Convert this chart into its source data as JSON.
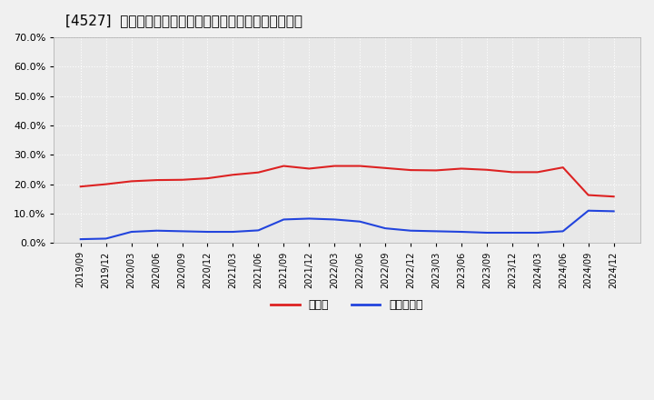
{
  "title": "[4527]  現預金、有利子負債の総資産に対する比率の推移",
  "x_labels": [
    "2019/09",
    "2019/12",
    "2020/03",
    "2020/06",
    "2020/09",
    "2020/12",
    "2021/03",
    "2021/06",
    "2021/09",
    "2021/12",
    "2022/03",
    "2022/06",
    "2022/09",
    "2022/12",
    "2023/03",
    "2023/06",
    "2023/09",
    "2023/12",
    "2024/03",
    "2024/06",
    "2024/09",
    "2024/12"
  ],
  "cash": [
    0.192,
    0.2,
    0.21,
    0.214,
    0.215,
    0.22,
    0.232,
    0.24,
    0.262,
    0.253,
    0.262,
    0.262,
    0.255,
    0.248,
    0.247,
    0.253,
    0.249,
    0.241,
    0.241,
    0.257,
    0.163,
    0.158
  ],
  "debt": [
    0.013,
    0.015,
    0.038,
    0.042,
    0.04,
    0.038,
    0.038,
    0.043,
    0.08,
    0.083,
    0.08,
    0.073,
    0.05,
    0.042,
    0.04,
    0.038,
    0.035,
    0.035,
    0.035,
    0.04,
    0.11,
    0.108
  ],
  "cash_color": "#dd2222",
  "debt_color": "#2244dd",
  "bg_color": "#f0f0f0",
  "plot_bg_color": "#e8e8e8",
  "grid_color": "#ffffff",
  "legend_cash": "現預金",
  "legend_debt": "有利子負債",
  "ylim": [
    0.0,
    0.7
  ],
  "yticks": [
    0.0,
    0.1,
    0.2,
    0.3,
    0.4,
    0.5,
    0.6,
    0.7
  ]
}
